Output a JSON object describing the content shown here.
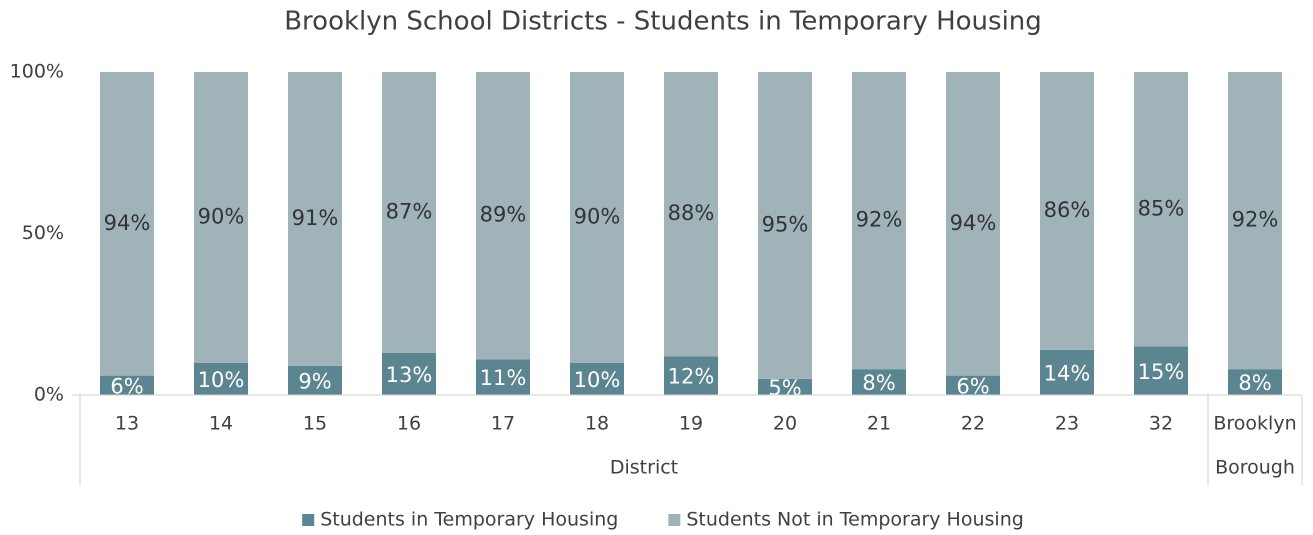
{
  "chart_data": {
    "type": "stacked_bar",
    "title": "Brooklyn School Districts - Students in Temporary Housing",
    "categories": [
      "13",
      "14",
      "15",
      "16",
      "17",
      "18",
      "19",
      "20",
      "21",
      "22",
      "23",
      "32",
      "Brooklyn"
    ],
    "groups": [
      {
        "label": "District",
        "count": 12
      },
      {
        "label": "Borough",
        "count": 1
      }
    ],
    "series": [
      {
        "name": "Students in Temporary Housing",
        "color": "#5b8590",
        "values": [
          6,
          10,
          9,
          13,
          11,
          10,
          12,
          5,
          8,
          6,
          14,
          15,
          8
        ],
        "value_labels": [
          "6%",
          "10%",
          "9%",
          "13%",
          "11%",
          "10%",
          "12%",
          "5%",
          "8%",
          "6%",
          "14%",
          "15%",
          "8%"
        ],
        "label_color": "#ffffff"
      },
      {
        "name": "Students Not in Temporary Housing",
        "color": "#9fb3b9",
        "values": [
          94,
          90,
          91,
          87,
          89,
          90,
          88,
          95,
          92,
          94,
          86,
          85,
          92
        ],
        "value_labels": [
          "94%",
          "90%",
          "91%",
          "87%",
          "89%",
          "90%",
          "88%",
          "95%",
          "92%",
          "94%",
          "86%",
          "85%",
          "92%"
        ],
        "label_color": "#333333"
      }
    ],
    "ylim": [
      0,
      100
    ],
    "yticks": [
      {
        "value": 0,
        "label": "0%"
      },
      {
        "value": 50,
        "label": "50%"
      },
      {
        "value": 100,
        "label": "100%"
      }
    ],
    "grid": false,
    "legend": "bottom"
  }
}
